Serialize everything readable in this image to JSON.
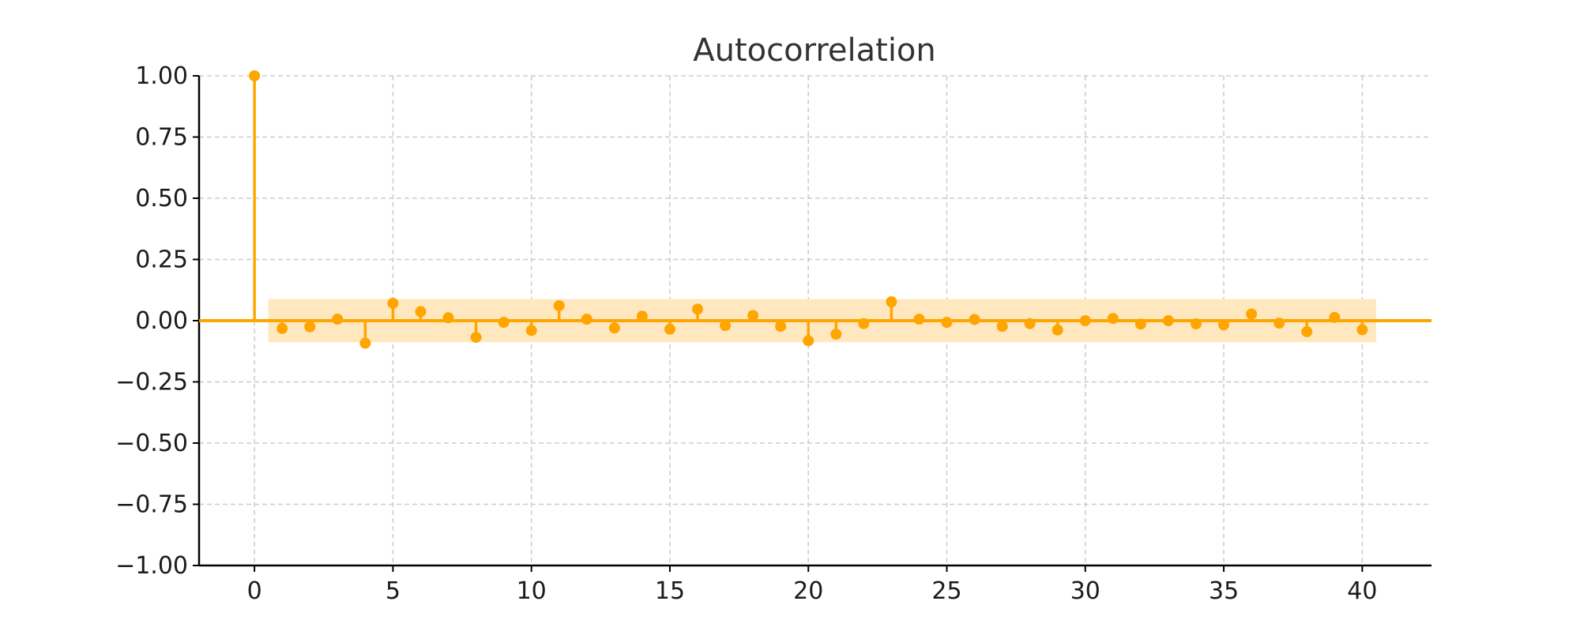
{
  "chart_data": {
    "type": "stem",
    "title": "Autocorrelation",
    "xlabel": "",
    "ylabel": "",
    "xlim": [
      -2,
      42.5
    ],
    "ylim": [
      -1.0,
      1.0
    ],
    "x_ticks": [
      0,
      5,
      10,
      15,
      20,
      25,
      30,
      35,
      40
    ],
    "x_tick_labels": [
      "0",
      "5",
      "10",
      "15",
      "20",
      "25",
      "30",
      "35",
      "40"
    ],
    "y_ticks": [
      1.0,
      0.75,
      0.5,
      0.25,
      0.0,
      -0.25,
      -0.5,
      -0.75,
      -1.0
    ],
    "y_tick_labels": [
      "1.00",
      "0.75",
      "0.50",
      "0.25",
      "0.00",
      "−0.25",
      "−0.50",
      "−0.75",
      "−1.00"
    ],
    "grid": true,
    "confidence_band": {
      "lower": -0.088,
      "upper": 0.088,
      "lag_start": 0.5,
      "lag_end": 40.5
    },
    "series": [
      {
        "name": "acf",
        "lags": [
          0,
          1,
          2,
          3,
          4,
          5,
          6,
          7,
          8,
          9,
          10,
          11,
          12,
          13,
          14,
          15,
          16,
          17,
          18,
          19,
          20,
          21,
          22,
          23,
          24,
          25,
          26,
          27,
          28,
          29,
          30,
          31,
          32,
          33,
          34,
          35,
          36,
          37,
          38,
          39,
          40
        ],
        "values": [
          1.0,
          -0.032,
          -0.025,
          0.006,
          -0.092,
          0.071,
          0.037,
          0.012,
          -0.068,
          -0.007,
          -0.04,
          0.061,
          0.006,
          -0.03,
          0.018,
          -0.035,
          0.047,
          -0.02,
          0.021,
          -0.023,
          -0.082,
          -0.055,
          -0.012,
          0.077,
          0.006,
          -0.007,
          0.005,
          -0.023,
          -0.012,
          -0.038,
          0.0,
          0.009,
          -0.014,
          0.0,
          -0.013,
          -0.017,
          0.027,
          -0.01,
          -0.045,
          0.013,
          -0.037
        ]
      }
    ]
  },
  "colors": {
    "accent": "#FFA500",
    "band": "#FFE8BF",
    "grid": "#cccccc",
    "axis": "#000000",
    "title": "#333333",
    "text": "#1a1a1a"
  }
}
